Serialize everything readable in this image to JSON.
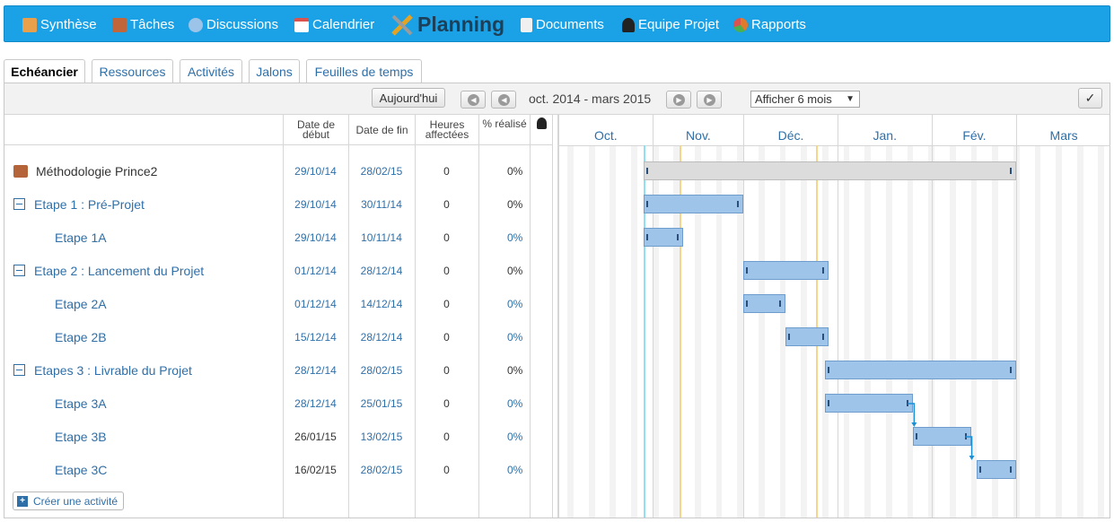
{
  "nav": {
    "items": [
      {
        "label": "Synthèse",
        "icon": "home-icon",
        "color": "#e8a04a"
      },
      {
        "label": "Tâches",
        "icon": "tasks-icon",
        "color": "#c0663a"
      },
      {
        "label": "Discussions",
        "icon": "chat-icon",
        "color": "#9cc3e8"
      },
      {
        "label": "Calendrier",
        "icon": "calendar-icon",
        "color": "#d9534f"
      },
      {
        "label": "Planning",
        "icon": "planning-icon",
        "color": "#e6a321",
        "active": true
      },
      {
        "label": "Documents",
        "icon": "document-icon",
        "color": "#f0f0f0"
      },
      {
        "label": "Equipe Projet",
        "icon": "user-icon",
        "color": "#222222"
      },
      {
        "label": "Rapports",
        "icon": "report-icon",
        "color": "#e07a2c"
      }
    ]
  },
  "tabs": [
    {
      "label": "Echéancier",
      "active": true
    },
    {
      "label": "Ressources"
    },
    {
      "label": "Activités"
    },
    {
      "label": "Jalons"
    },
    {
      "label": "Feuilles de temps"
    }
  ],
  "toolbar": {
    "today_label": "Aujourd'hui",
    "range_label": "oct. 2014 - mars 2015",
    "period_select": "Afficher 6 mois"
  },
  "columns": {
    "start": "Date de début",
    "end": "Date de fin",
    "hours": "Heures affectées",
    "done": "% réalisé"
  },
  "months": [
    "Oct.",
    "Nov.",
    "Déc.",
    "Jan.",
    "Fév.",
    "Mars"
  ],
  "rows": [
    {
      "name": "Méthodologie Prince2",
      "level": 0,
      "start": "29/10/14",
      "end": "28/02/15",
      "hours": "0",
      "done": "0%"
    },
    {
      "name": "Etape 1 : Pré-Projet",
      "level": 1,
      "start": "29/10/14",
      "end": "30/11/14",
      "hours": "0",
      "done": "0%"
    },
    {
      "name": "Etape 1A",
      "level": 2,
      "start": "29/10/14",
      "end": "10/11/14",
      "hours": "0",
      "done": "0%"
    },
    {
      "name": "Etape 2 : Lancement du Projet",
      "level": 1,
      "start": "01/12/14",
      "end": "28/12/14",
      "hours": "0",
      "done": "0%"
    },
    {
      "name": "Etape 2A",
      "level": 2,
      "start": "01/12/14",
      "end": "14/12/14",
      "hours": "0",
      "done": "0%"
    },
    {
      "name": "Etape 2B",
      "level": 2,
      "start": "15/12/14",
      "end": "28/12/14",
      "hours": "0",
      "done": "0%"
    },
    {
      "name": "Etapes 3 : Livrable du Projet",
      "level": 1,
      "start": "28/12/14",
      "end": "28/02/15",
      "hours": "0",
      "done": "0%"
    },
    {
      "name": "Etape 3A",
      "level": 2,
      "start": "28/12/14",
      "end": "25/01/15",
      "hours": "0",
      "done": "0%"
    },
    {
      "name": "Etape 3B",
      "level": 2,
      "start": "26/01/15",
      "end": "13/02/15",
      "hours": "0",
      "done": "0%"
    },
    {
      "name": "Etape 3C",
      "level": 2,
      "start": "16/02/15",
      "end": "28/02/15",
      "hours": "0",
      "done": "0%"
    }
  ],
  "create_label": "Créer une activité"
}
